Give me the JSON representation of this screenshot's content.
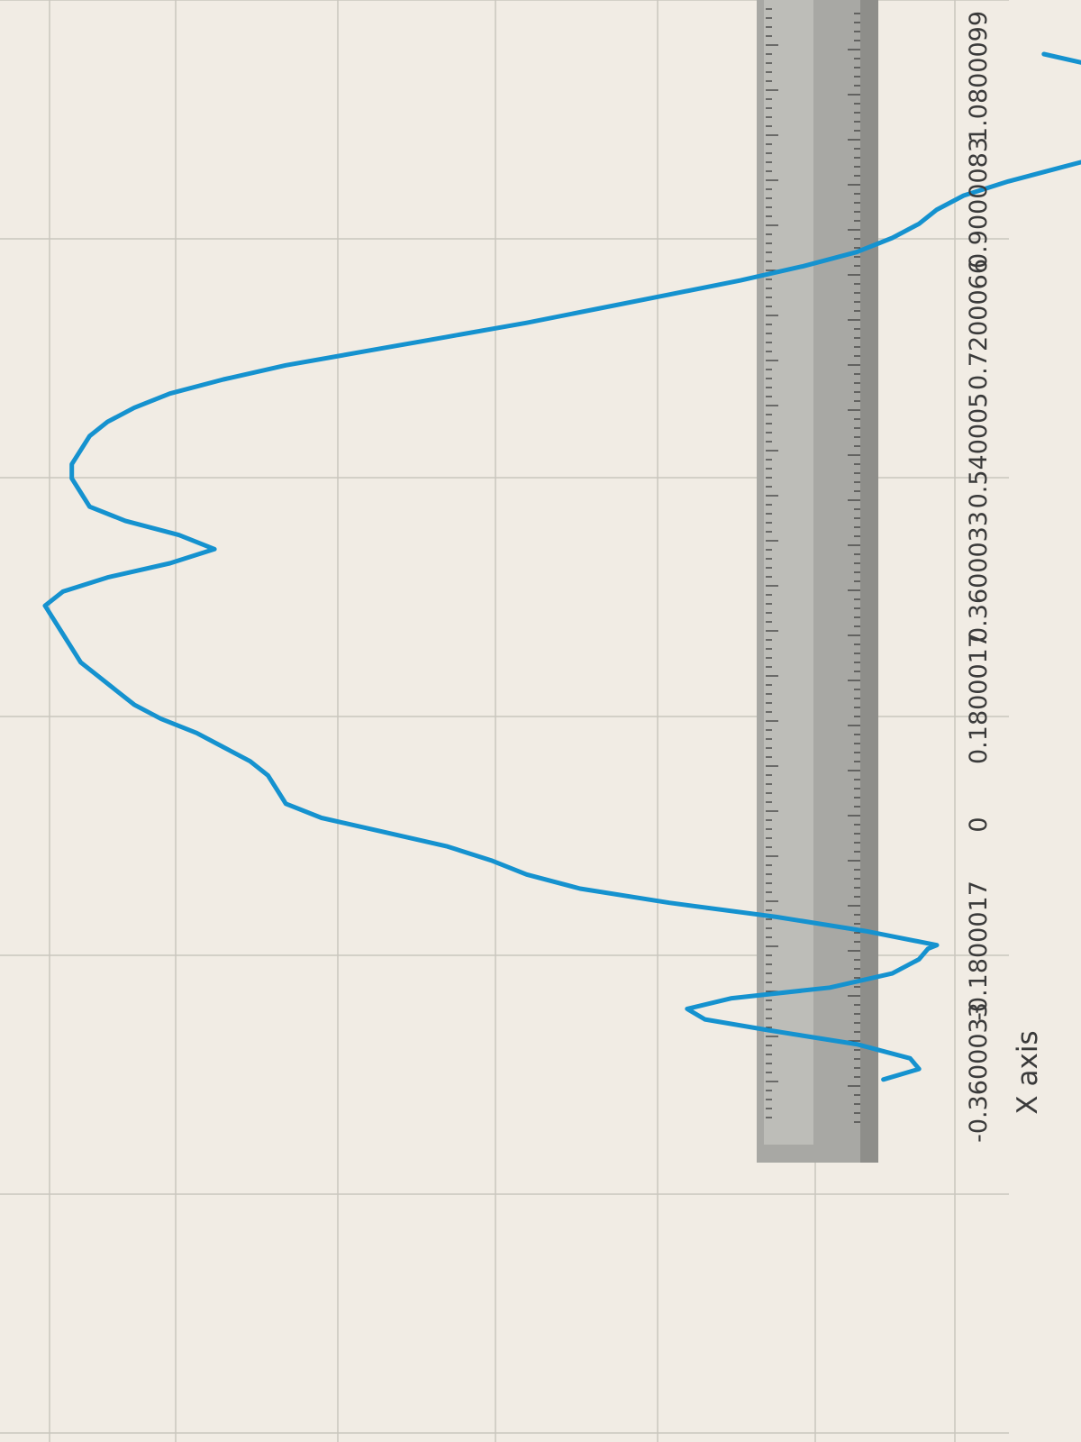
{
  "chart_data": {
    "type": "line",
    "title": "",
    "xlabel": "X axis",
    "ylabel": "",
    "x_ticks": [
      "-0.3600033",
      "-0.1800017",
      "0",
      "0.1800017",
      "0.3600033",
      "0.540005",
      "0.7200066",
      "0.9000083",
      "1.0800099"
    ],
    "xlim": [
      -0.3600033,
      1.0800099
    ],
    "grid": true,
    "legend": "none",
    "series": [
      {
        "color": "#1592cf",
        "x": [
          -0.37,
          -0.355,
          -0.34,
          -0.32,
          -0.3,
          -0.285,
          -0.27,
          -0.255,
          -0.24,
          -0.22,
          -0.2,
          -0.185,
          -0.18,
          -0.16,
          -0.14,
          -0.12,
          -0.1,
          -0.08,
          -0.06,
          -0.04,
          -0.02,
          0.0,
          0.02,
          0.04,
          0.06,
          0.08,
          0.1,
          0.12,
          0.14,
          0.16,
          0.18,
          0.2,
          0.22,
          0.24,
          0.26,
          0.28,
          0.3,
          0.32,
          0.34,
          0.36,
          0.38,
          0.4,
          0.42,
          0.44,
          0.46,
          0.48,
          0.5,
          0.52,
          0.54,
          0.56,
          0.58,
          0.6,
          0.62,
          0.64,
          0.66,
          0.68,
          0.7,
          0.72,
          0.74,
          0.76,
          0.78,
          0.8,
          0.82,
          0.84,
          0.86,
          0.88,
          0.9,
          0.92,
          0.94,
          0.96,
          0.98,
          1.0,
          1.02,
          1.04,
          1.06,
          1.08
        ],
        "y": [
          0.06,
          0.02,
          0.03,
          0.09,
          0.19,
          0.26,
          0.28,
          0.23,
          0.12,
          0.05,
          0.02,
          0.01,
          0.0,
          0.08,
          0.18,
          0.3,
          0.4,
          0.46,
          0.5,
          0.55,
          0.62,
          0.69,
          0.73,
          0.74,
          0.75,
          0.77,
          0.8,
          0.83,
          0.87,
          0.9,
          0.92,
          0.94,
          0.96,
          0.97,
          0.98,
          0.99,
          1.0,
          0.98,
          0.93,
          0.86,
          0.81,
          0.85,
          0.91,
          0.95,
          0.96,
          0.97,
          0.97,
          0.96,
          0.95,
          0.93,
          0.9,
          0.86,
          0.8,
          0.73,
          0.64,
          0.55,
          0.46,
          0.38,
          0.3,
          0.22,
          0.15,
          0.09,
          0.05,
          0.02,
          0.0,
          -0.03,
          -0.08,
          -0.14,
          -0.2,
          -0.26,
          -0.3,
          -0.32,
          -0.31,
          -0.26,
          -0.19,
          -0.12
        ]
      }
    ]
  }
}
